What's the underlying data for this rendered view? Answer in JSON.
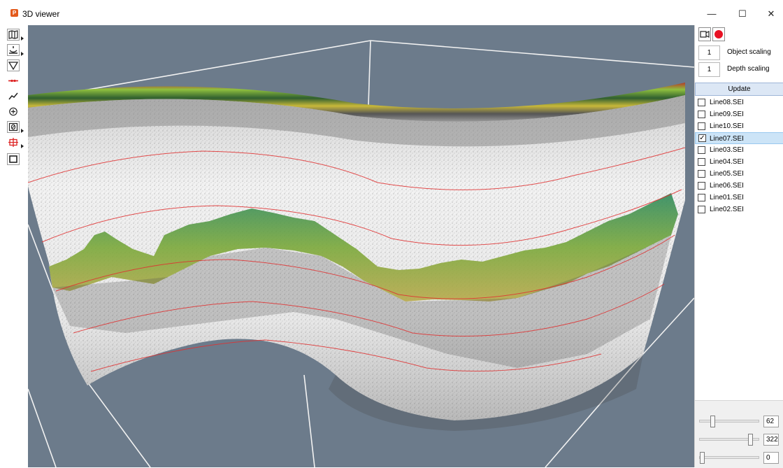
{
  "window": {
    "title": "3D viewer",
    "minimize": "—",
    "maximize": "☐",
    "close": "✕"
  },
  "toolbar": {
    "tools": [
      {
        "icon": "map-icon",
        "has_menu": true
      },
      {
        "icon": "sonar-ping-icon",
        "has_menu": true
      },
      {
        "icon": "triangle-down-icon",
        "has_menu": false
      },
      {
        "icon": "red-line-icon",
        "has_menu": false
      },
      {
        "icon": "trend-line-icon",
        "has_menu": false
      },
      {
        "icon": "target-icon",
        "has_menu": false
      },
      {
        "icon": "zero-icon",
        "has_menu": true
      },
      {
        "icon": "crosshair-icon",
        "has_menu": true
      },
      {
        "icon": "square-icon",
        "has_menu": false
      }
    ]
  },
  "panel": {
    "object_scaling": {
      "value": "1",
      "label": "Object scaling"
    },
    "depth_scaling": {
      "value": "1",
      "label": "Depth scaling"
    },
    "update_label": "Update",
    "lines": [
      {
        "name": "Line08.SEI",
        "checked": false,
        "selected": false
      },
      {
        "name": "Line09.SEI",
        "checked": false,
        "selected": false
      },
      {
        "name": "Line10.SEI",
        "checked": false,
        "selected": false
      },
      {
        "name": "Line07.SEI",
        "checked": true,
        "selected": true
      },
      {
        "name": "Line03.SEI",
        "checked": false,
        "selected": false
      },
      {
        "name": "Line04.SEI",
        "checked": false,
        "selected": false
      },
      {
        "name": "Line05.SEI",
        "checked": false,
        "selected": false
      },
      {
        "name": "Line06.SEI",
        "checked": false,
        "selected": false
      },
      {
        "name": "Line01.SEI",
        "checked": false,
        "selected": false
      },
      {
        "name": "Line02.SEI",
        "checked": false,
        "selected": false
      }
    ],
    "sliders": [
      {
        "value": "62",
        "fraction": 0.2
      },
      {
        "value": "322",
        "fraction": 0.9
      },
      {
        "value": "0",
        "fraction": 0.0
      }
    ]
  },
  "colors": {
    "viewport_bg": "#6c7b8b",
    "record": "#e81123",
    "selected_row": "#cce4f7"
  }
}
